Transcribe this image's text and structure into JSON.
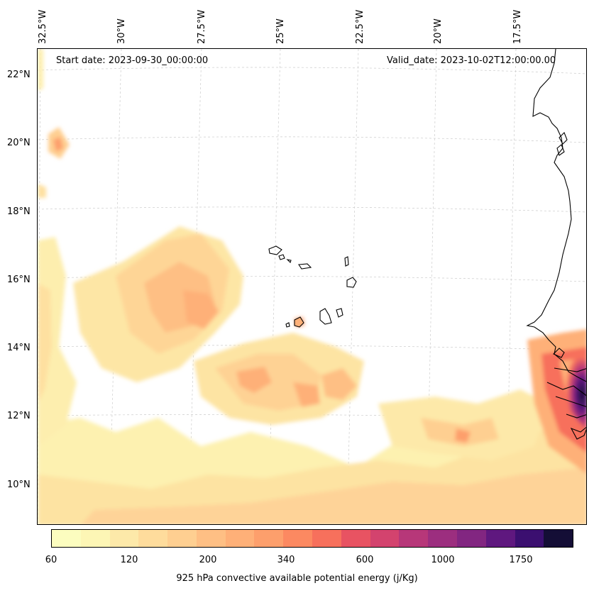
{
  "map": {
    "start_date": "Start date: 2023-09-30_00:00:00",
    "valid_date": "Valid_date: 2023-10-02T12:00:00.00",
    "lon_labels": [
      "32.5°W",
      "30°W",
      "27.5°W",
      "25°W",
      "22.5°W",
      "20°W",
      "17.5°W"
    ],
    "lat_labels": [
      "22°N",
      "20°N",
      "18°N",
      "16°N",
      "14°N",
      "12°N",
      "10°N"
    ],
    "features": {
      "coastline": "West Africa",
      "islands": "Cabo Verde"
    }
  },
  "colorbar": {
    "label": "925 hPa convective available potential energy (j/Kg)",
    "tick_labels": [
      "60",
      "120",
      "200",
      "340",
      "600",
      "1000",
      "1750"
    ],
    "colors": [
      "#fcfdbf",
      "#fdf6b5",
      "#fde9a9",
      "#fedc9c",
      "#fecf91",
      "#febf84",
      "#feb078",
      "#fd9f6c",
      "#fc8961",
      "#f7705c",
      "#e85362",
      "#d3436e",
      "#b73779",
      "#9c2e7f",
      "#822681",
      "#5f187f",
      "#3b0f70",
      "#140e36"
    ]
  }
}
